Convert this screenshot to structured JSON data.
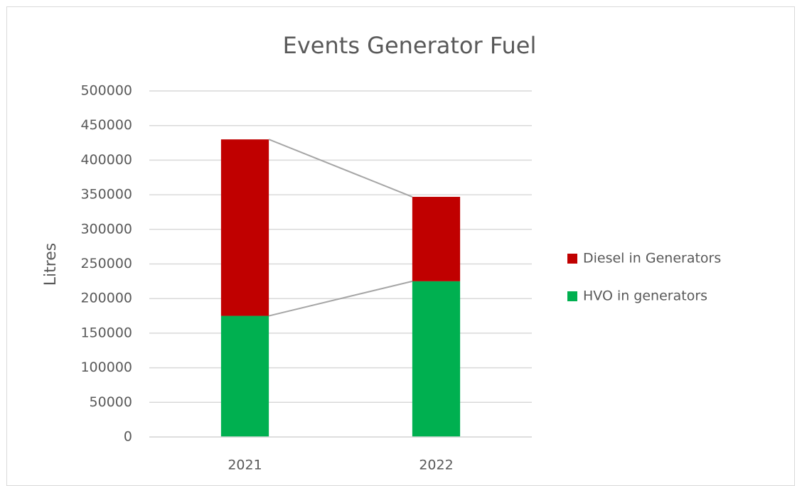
{
  "chart_data": {
    "type": "stacked_bar",
    "title": "Events Generator Fuel",
    "y_label": "Litres",
    "categories": [
      "2021",
      "2022"
    ],
    "series": [
      {
        "name": "HVO in generators",
        "color": "#00b050",
        "values": [
          175000,
          225000
        ]
      },
      {
        "name": "Diesel in Generators",
        "color": "#c00000",
        "values": [
          255000,
          122000
        ]
      }
    ],
    "ylim": [
      0,
      500000
    ],
    "yticks": [
      0,
      50000,
      100000,
      150000,
      200000,
      250000,
      300000,
      350000,
      400000,
      450000,
      500000
    ],
    "grid": true,
    "legend": "right",
    "series_lines": true
  }
}
